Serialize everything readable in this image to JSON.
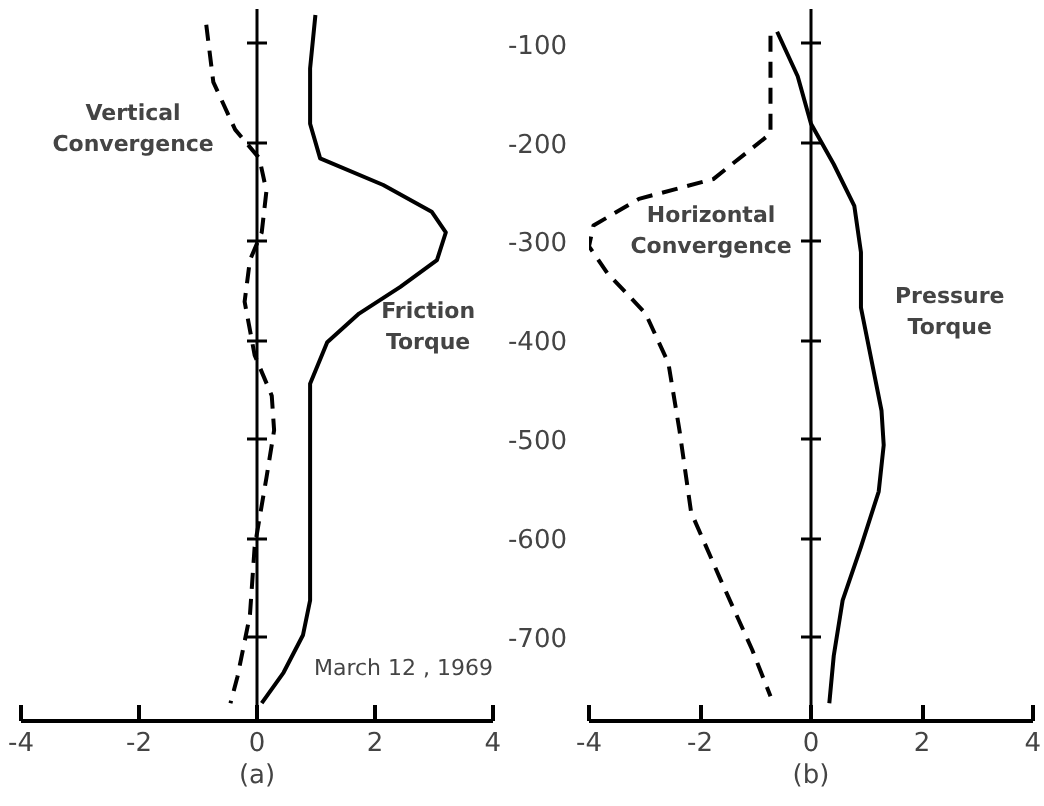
{
  "chart_data": [
    {
      "type": "line",
      "xlabel": "(a)",
      "xlim": [
        -4,
        4
      ],
      "xticks": [
        -4,
        -2,
        0,
        2,
        4
      ],
      "ylim": [
        -785,
        -65
      ],
      "yticks": [
        -100,
        -200,
        -300,
        -400,
        -500,
        -600,
        -700
      ],
      "tick_labels": "x",
      "series": [
        {
          "color": "#000000",
          "line_style": "solid",
          "x": [
            0.99,
            0.9,
            0.9,
            1.07,
            2.14,
            2.96,
            3.2,
            3.05,
            2.43,
            1.73,
            1.19,
            0.9,
            0.9,
            0.9,
            0.9,
            0.78,
            0.45,
            0.08
          ],
          "values": [
            -71,
            -125,
            -181,
            -216,
            -243,
            -270,
            -291,
            -319,
            -346,
            -373,
            -402,
            -444,
            -506,
            -609,
            -663,
            -698,
            -736,
            -767
          ]
        },
        {
          "color": "#000000",
          "line_style": "dashed",
          "x": [
            -0.86,
            -0.74,
            -0.37,
            0.04,
            0.16,
            0.08,
            -0.12,
            -0.21,
            -0.04,
            0.25,
            0.29,
            0.16,
            -0.04,
            -0.12,
            -0.33,
            -0.45
          ],
          "values": [
            -81,
            -139,
            -187,
            -216,
            -249,
            -291,
            -319,
            -361,
            -415,
            -456,
            -491,
            -539,
            -609,
            -678,
            -740,
            -767
          ]
        }
      ],
      "annotations": [
        "Vertical Convergence",
        "Friction Torque",
        "March 12 , 1969"
      ]
    },
    {
      "type": "line",
      "xlabel": "(b)",
      "xlim": [
        -4,
        4
      ],
      "xticks": [
        -4,
        -2,
        0,
        2,
        4
      ],
      "ylim": [
        -785,
        -65
      ],
      "yticks": [
        -100,
        -200,
        -300,
        -400,
        -500,
        -600,
        -700
      ],
      "series": [
        {
          "color": "#000000",
          "line_style": "solid",
          "x": [
            -0.61,
            -0.24,
            0,
            0.41,
            0.78,
            0.9,
            0.9,
            1.1,
            1.27,
            1.31,
            1.22,
            0.9,
            0.57,
            0.41,
            0.33
          ],
          "values": [
            -88,
            -133,
            -181,
            -222,
            -264,
            -311,
            -367,
            -423,
            -471,
            -506,
            -553,
            -609,
            -663,
            -719,
            -767
          ]
        },
        {
          "color": "#000000",
          "line_style": "dashed",
          "x": [
            -0.73,
            -0.73,
            -0.73,
            -1.76,
            -3.1,
            -3.92,
            -4.0,
            -3.67,
            -2.98,
            -2.57,
            -2.37,
            -2.16,
            -1.63,
            -1.06,
            -0.73
          ],
          "values": [
            -92,
            -139,
            -191,
            -237,
            -257,
            -284,
            -305,
            -332,
            -373,
            -423,
            -491,
            -574,
            -642,
            -713,
            -760
          ]
        }
      ],
      "annotations": [
        "Horizontal Convergence",
        "Pressure Torque"
      ]
    }
  ]
}
